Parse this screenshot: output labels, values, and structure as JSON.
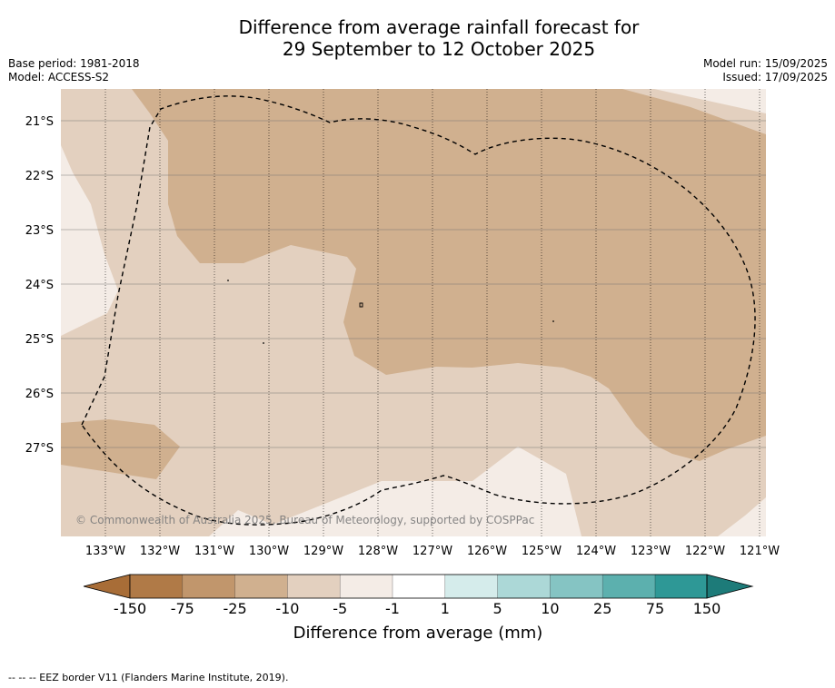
{
  "title_line1": "Difference from average rainfall forecast for",
  "title_line2": "29 September to 12 October 2025",
  "base_period": "Base period: 1981-2018",
  "model": "Model: ACCESS-S2",
  "model_run": "Model run: 15/09/2025",
  "issued": "Issued: 17/09/2025",
  "copyright": "© Commonwealth of Australia 2025, Bureau of Meteorology, supported by COSPPac",
  "latitude_labels": [
    "21°S",
    "22°S",
    "23°S",
    "24°S",
    "25°S",
    "26°S",
    "27°S"
  ],
  "longitude_labels": [
    "133°W",
    "132°W",
    "131°W",
    "130°W",
    "129°W",
    "128°W",
    "127°W",
    "126°W",
    "125°W",
    "124°W",
    "123°W",
    "122°W",
    "121°W"
  ],
  "colorbar": {
    "label": "Difference from average (mm)",
    "tick_labels": [
      "-150",
      "-75",
      "-25",
      "-10",
      "-5",
      "-1",
      "1",
      "5",
      "10",
      "25",
      "75",
      "150"
    ],
    "colors": [
      "#a86d37",
      "#b07a47",
      "#c1966c",
      "#d0b08f",
      "#e3d0bf",
      "#f4ece6",
      "#ffffff",
      "#d5eceb",
      "#acd8d7",
      "#85c4c3",
      "#5cb0ae",
      "#2e9896",
      "#1d7b79"
    ]
  },
  "footnote": "--  --  -- EEZ border V11 (Flanders Marine Institute, 2019)."
}
